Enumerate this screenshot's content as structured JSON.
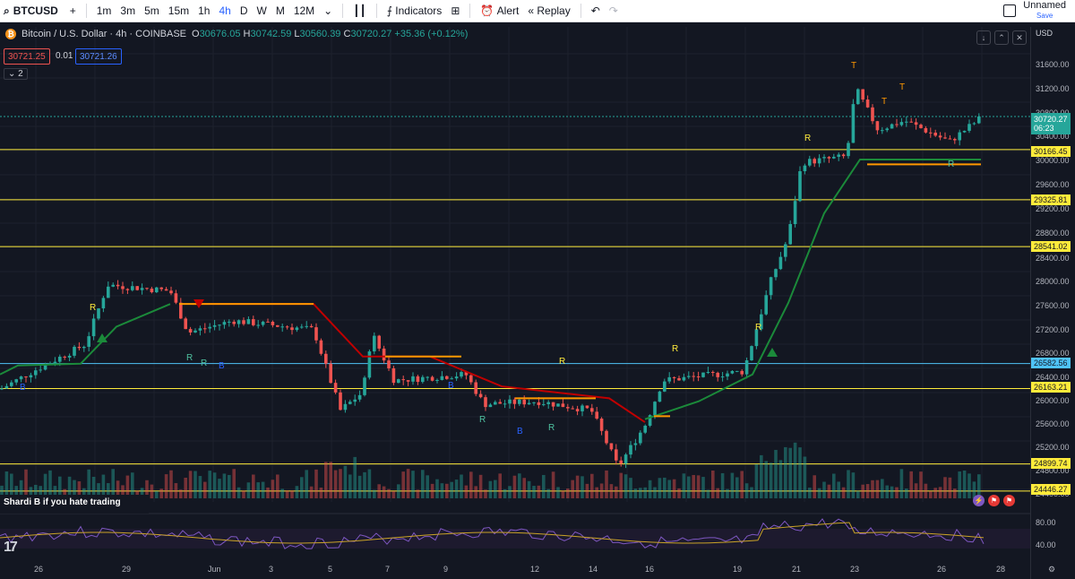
{
  "toolbar": {
    "symbol": "BTCUSD",
    "add_symbol": "+",
    "timeframes": [
      "1m",
      "3m",
      "5m",
      "15m",
      "1h",
      "4h",
      "D",
      "W",
      "M",
      "12M"
    ],
    "active_timeframe": "4h",
    "indicators_label": "Indicators",
    "alert_label": "Alert",
    "replay_label": "Replay",
    "layout_name": "Unnamed",
    "save_label": "Save"
  },
  "legend": {
    "title": "Bitcoin / U.S. Dollar · 4h · COINBASE",
    "o_label": "O",
    "o": "30676.05",
    "h_label": "H",
    "h": "30742.59",
    "l_label": "L",
    "l": "30560.39",
    "c_label": "C",
    "c": "30720.27",
    "change": "+35.36 (+0.12%)"
  },
  "trade": {
    "sell": "30721.25",
    "spread": "0.01",
    "buy": "30721.26"
  },
  "collapse_label": "2",
  "price_axis": {
    "currency": "USD",
    "ticks": [
      "31600.00",
      "31200.00",
      "30800.00",
      "30400.00",
      "30000.00",
      "29600.00",
      "29200.00",
      "28800.00",
      "28400.00",
      "28000.00",
      "27600.00",
      "27200.00",
      "26800.00",
      "26400.00",
      "26000.00",
      "25600.00",
      "25200.00",
      "24800.00",
      "24400.00"
    ],
    "levels": [
      "30166.45",
      "29325.81",
      "28541.02",
      "26582.56",
      "26163.21",
      "24899.74",
      "24446.27"
    ],
    "current_price": "30720.27",
    "countdown": "06:23"
  },
  "chart_markers": {
    "r_labels": [
      "R",
      "R",
      "R",
      "R",
      "R",
      "R",
      "R",
      "R",
      "R",
      "R"
    ],
    "t_labels": [
      "T",
      "T",
      "T"
    ],
    "b_labels": [
      "B",
      "B",
      "B",
      "B"
    ]
  },
  "ticker_text": "Shardi B if you hate trading",
  "rsi_axis": [
    "80.00",
    "40.00"
  ],
  "time_axis": [
    "26",
    "29",
    "Jun",
    "3",
    "5",
    "7",
    "9",
    "12",
    "14",
    "16",
    "19",
    "21",
    "23",
    "26",
    "28"
  ],
  "colors": {
    "bull": "#26a69a",
    "bear": "#ef5350",
    "level": "#ffeb3b",
    "blue_level": "#4fc3f7",
    "trail_green": "#1b8a3a",
    "trail_red": "#c00000",
    "orange": "#ff9800"
  }
}
